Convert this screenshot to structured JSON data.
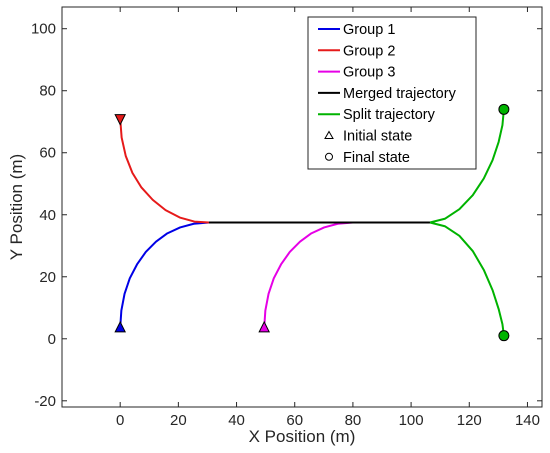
{
  "chart_data": {
    "type": "line",
    "title": "",
    "xlabel": "X Position (m)",
    "ylabel": "Y Position (m)",
    "xlim": [
      -20,
      145
    ],
    "ylim": [
      -22,
      107
    ],
    "xticks": [
      0,
      20,
      40,
      60,
      80,
      100,
      120,
      140
    ],
    "yticks": [
      -20,
      0,
      20,
      40,
      60,
      80,
      100
    ],
    "xtick_labels": [
      "0",
      "20",
      "40",
      "60",
      "80",
      "100",
      "120",
      "140"
    ],
    "ytick_labels": [
      "-20",
      "0",
      "20",
      "40",
      "60",
      "80",
      "100"
    ],
    "grid": false,
    "legend_position": "top-right",
    "colors": {
      "group1": "#0000e6",
      "group2": "#e61a1a",
      "group3": "#e600e6",
      "merged": "#000000",
      "split": "#00b300",
      "axis": "#262626"
    },
    "series": [
      {
        "name": "Group 1",
        "color": "#0000e6",
        "x": [
          0,
          0.4,
          1.5,
          3.3,
          5.8,
          8.8,
          12.3,
          16.2,
          20.6,
          25.3,
          30.5
        ],
        "y": [
          3.5,
          9.1,
          14.5,
          19.5,
          24.0,
          28.0,
          31.3,
          34.0,
          35.9,
          37.1,
          37.5
        ]
      },
      {
        "name": "Group 2",
        "color": "#e61a1a",
        "x": [
          0,
          0.5,
          1.9,
          4.2,
          7.3,
          11.2,
          15.6,
          20.5,
          25.5,
          30.5
        ],
        "y": [
          71,
          64.9,
          59.0,
          53.5,
          48.8,
          44.8,
          41.5,
          39.1,
          37.8,
          37.5
        ]
      },
      {
        "name": "Group 3",
        "color": "#e600e6",
        "x": [
          49.5,
          49.9,
          51.0,
          52.8,
          55.3,
          58.3,
          61.8,
          65.7,
          70.1,
          74.8,
          80.0
        ],
        "y": [
          3.5,
          9.1,
          14.5,
          19.5,
          24.0,
          28.0,
          31.3,
          34.0,
          35.9,
          37.1,
          37.5
        ]
      },
      {
        "name": "Merged trajectory",
        "color": "#000000",
        "x": [
          30.5,
          106.5
        ],
        "y": [
          37.5,
          37.5
        ]
      },
      {
        "name": "Split trajectory",
        "color": "#00b300",
        "x": [
          106.5,
          111.6,
          116.6,
          121.2,
          125.0,
          128.0,
          130.1,
          131.4,
          131.9
        ],
        "y": [
          37.5,
          38.7,
          41.8,
          46.3,
          51.7,
          57.6,
          63.5,
          68.9,
          74.0
        ]
      },
      {
        "name": "",
        "color": "#00b300",
        "x": [
          106.5,
          111.6,
          116.6,
          121.2,
          125.0,
          128.0,
          130.1,
          131.4,
          131.9
        ],
        "y": [
          37.5,
          36.3,
          33.2,
          28.3,
          22.2,
          15.7,
          9.6,
          4.7,
          1.0
        ]
      }
    ],
    "markers": [
      {
        "shape": "triangle-down",
        "x": 0,
        "y": 71,
        "color": "#e61a1a"
      },
      {
        "shape": "triangle-up",
        "x": 0,
        "y": 3.5,
        "color": "#0000e6"
      },
      {
        "shape": "triangle-up",
        "x": 49.5,
        "y": 3.5,
        "color": "#e600e6"
      },
      {
        "shape": "circle",
        "x": 131.9,
        "y": 74.0,
        "color": "#00b300"
      },
      {
        "shape": "circle",
        "x": 131.9,
        "y": 1.0,
        "color": "#00b300"
      }
    ],
    "legend": [
      {
        "label": "Group 1",
        "kind": "line",
        "color": "#0000e6"
      },
      {
        "label": "Group 2",
        "kind": "line",
        "color": "#e61a1a"
      },
      {
        "label": "Group 3",
        "kind": "line",
        "color": "#e600e6"
      },
      {
        "label": "Merged trajectory",
        "kind": "line",
        "color": "#000000"
      },
      {
        "label": "Split trajectory",
        "kind": "line",
        "color": "#00b300"
      },
      {
        "label": "Initial state",
        "kind": "triangle",
        "color": "#000000"
      },
      {
        "label": "Final state",
        "kind": "circle",
        "color": "#000000"
      }
    ]
  }
}
